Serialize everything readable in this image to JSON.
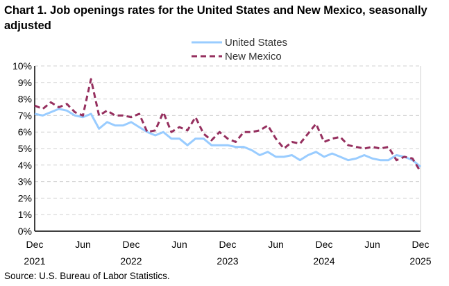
{
  "chart_data": {
    "type": "line",
    "title": "Chart 1. Job openings rates for the United States and New Mexico, seasonally adjusted",
    "source": "Source: U.S. Bureau of Labor Statistics.",
    "xlabel": "",
    "ylabel": "",
    "ylim": [
      0,
      10
    ],
    "yticks": [
      "0%",
      "1%",
      "2%",
      "3%",
      "4%",
      "5%",
      "6%",
      "7%",
      "8%",
      "9%",
      "10%"
    ],
    "xticks": [
      {
        "month": "Dec",
        "year": "2021",
        "index": 0
      },
      {
        "month": "Jun",
        "year": "",
        "index": 6
      },
      {
        "month": "Dec",
        "year": "2022",
        "index": 12
      },
      {
        "month": "Jun",
        "year": "",
        "index": 18
      },
      {
        "month": "Dec",
        "year": "2023",
        "index": 24
      },
      {
        "month": "Jun",
        "year": "",
        "index": 30
      },
      {
        "month": "Dec",
        "year": "2024",
        "index": 36
      },
      {
        "month": "Jun",
        "year": "",
        "index": 42
      },
      {
        "month": "Dec",
        "year": "2025",
        "index": 48
      }
    ],
    "grid": true,
    "legend_position": "top-center",
    "series": [
      {
        "name": "United States",
        "color": "#99ccff",
        "dash": false,
        "values": [
          7.1,
          7.0,
          7.2,
          7.4,
          7.3,
          7.0,
          6.9,
          7.1,
          6.2,
          6.6,
          6.4,
          6.4,
          6.6,
          6.3,
          6.0,
          5.8,
          6.0,
          5.6,
          5.6,
          5.2,
          5.6,
          5.6,
          5.2,
          5.2,
          5.2,
          5.1,
          5.1,
          4.9,
          4.6,
          4.8,
          4.5,
          4.5,
          4.6,
          4.3,
          4.6,
          4.8,
          4.5,
          4.7,
          4.5,
          4.3,
          4.4,
          4.6,
          4.4,
          4.3,
          4.3,
          4.6,
          4.5,
          4.3,
          3.9
        ]
      },
      {
        "name": "New Mexico",
        "color": "#96305f",
        "dash": true,
        "values": [
          7.6,
          7.4,
          7.8,
          7.5,
          7.7,
          7.2,
          7.0,
          9.2,
          7.0,
          7.3,
          7.0,
          7.0,
          6.9,
          7.1,
          6.0,
          6.1,
          7.2,
          6.0,
          6.3,
          6.1,
          6.9,
          5.9,
          5.5,
          6.0,
          5.6,
          5.4,
          6.0,
          6.0,
          6.1,
          6.4,
          5.6,
          5.0,
          5.4,
          5.3,
          5.9,
          6.5,
          5.4,
          5.6,
          5.7,
          5.2,
          5.1,
          5.0,
          5.1,
          5.0,
          5.1,
          4.3,
          4.5,
          4.4,
          3.6
        ]
      }
    ]
  }
}
